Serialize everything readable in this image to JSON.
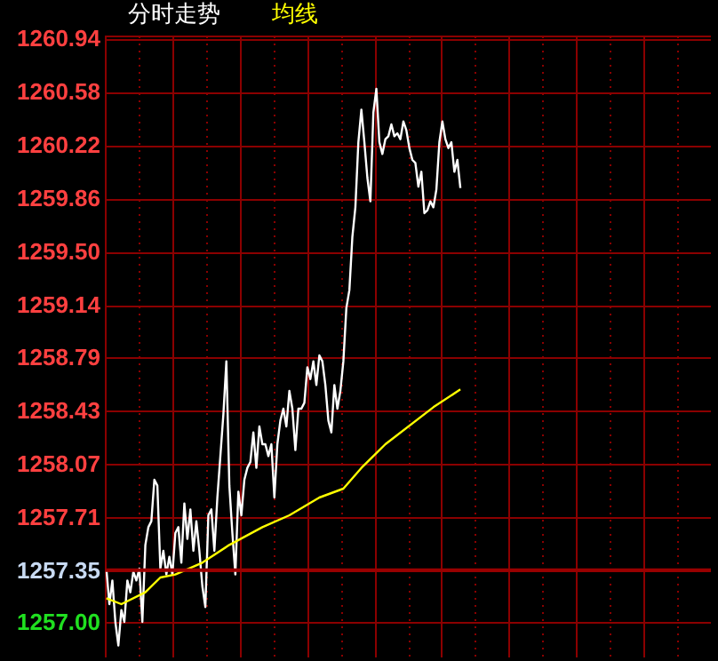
{
  "chart_data": {
    "type": "line",
    "grid": true,
    "tick_labels": "y",
    "categories": [
      null,
      null,
      null,
      null,
      null,
      null,
      null,
      null,
      null,
      null,
      null,
      null,
      null,
      null,
      null,
      null,
      null,
      null,
      null,
      null,
      null,
      null,
      null,
      null,
      null,
      null,
      null,
      null,
      null,
      null,
      null,
      null,
      null,
      null,
      null,
      null,
      null,
      null,
      null,
      null,
      null,
      null,
      null,
      null,
      null,
      null,
      null,
      null,
      null,
      null,
      null,
      null,
      null,
      null,
      null,
      null,
      null,
      null,
      null,
      null,
      null,
      null,
      null,
      null,
      null,
      null,
      null,
      null,
      null,
      null,
      null,
      null,
      null,
      null,
      null,
      null,
      null,
      null,
      null,
      null,
      null,
      null,
      null,
      null,
      null,
      null,
      null,
      null,
      null,
      null,
      null,
      null,
      null,
      null,
      null,
      null,
      null,
      null,
      null,
      null,
      null,
      null,
      null,
      null,
      null,
      null,
      null,
      null,
      null,
      null,
      null,
      null,
      null,
      null,
      null,
      null,
      null,
      null,
      null,
      null,
      null,
      null,
      null,
      null,
      null,
      null,
      null,
      null,
      null,
      null,
      null,
      null,
      null,
      null,
      null,
      null,
      null,
      null,
      null,
      null,
      null,
      null,
      null,
      null,
      null,
      null,
      null,
      null,
      null,
      null,
      null,
      null,
      null,
      null,
      null,
      null,
      null,
      null,
      null,
      null,
      null,
      null,
      null,
      null,
      null,
      null,
      null,
      null,
      null,
      null,
      null,
      null,
      null,
      null,
      null,
      null,
      null,
      null,
      null,
      null,
      null,
      null,
      null,
      null,
      null,
      null,
      null,
      null,
      null,
      null,
      null,
      null,
      null,
      null,
      null,
      null,
      null,
      null,
      null,
      null,
      null,
      null
    ],
    "ylim": [
      1256.76,
      1260.96
    ],
    "yticks": [
      {
        "value": 1257,
        "label": "1257.00"
      },
      1257.35,
      1257.71,
      1258.07,
      1258.43,
      1258.79,
      1259.14,
      {
        "value": 1259.5,
        "label": "1259.50"
      },
      1259.86,
      1260.22,
      1260.58,
      1260.94
    ],
    "ref_lines": [
      {
        "axis": "y",
        "value": 1257.35,
        "color": "#990000"
      }
    ],
    "series": [
      {
        "name": "分时走势",
        "color": "#ffffff",
        "values": [
          1257.36,
          1257.12,
          1257.28,
          1257.0,
          1256.84,
          1257.08,
          1257.0,
          1257.28,
          1257.2,
          1257.34,
          1257.28,
          1257.36,
          1257.0,
          1257.52,
          1257.64,
          1257.68,
          1257.96,
          1257.92,
          1257.36,
          1257.48,
          1257.32,
          1257.44,
          1257.32,
          1257.6,
          1257.64,
          1257.4,
          1257.8,
          1257.56,
          1257.76,
          1257.48,
          1257.68,
          1257.48,
          1257.24,
          1257.1,
          1257.72,
          1257.76,
          1257.48,
          1257.84,
          1258.12,
          1258.4,
          1258.76,
          1257.92,
          1257.6,
          1257.32,
          1257.88,
          1257.72,
          1257.96,
          1258.04,
          1258.08,
          1258.28,
          1258.04,
          1258.32,
          1258.2,
          1258.2,
          1258.12,
          1258.2,
          1257.84,
          1258.2,
          1258.36,
          1258.44,
          1258.32,
          1258.56,
          1258.44,
          1258.16,
          1258.44,
          1258.44,
          1258.48,
          1258.72,
          1258.64,
          1258.76,
          1258.6,
          1258.8,
          1258.76,
          1258.6,
          1258.36,
          1258.28,
          1258.6,
          1258.44,
          1258.56,
          1258.76,
          1259.12,
          1259.24,
          1259.6,
          1259.8,
          1260.24,
          1260.46,
          1260.24,
          1260.0,
          1259.84,
          1260.44,
          1260.6,
          1260.24,
          1260.16,
          1260.26,
          1260.28,
          1260.36,
          1260.28,
          1260.3,
          1260.26,
          1260.38,
          1260.32,
          1260.2,
          1260.12,
          1260.1,
          1259.94,
          1260.04,
          1259.76,
          1259.78,
          1259.84,
          1259.8,
          1259.92,
          1260.24,
          1260.38,
          1260.26,
          1260.2,
          1260.24,
          1260.04,
          1260.12,
          1259.93,
          null,
          null,
          null,
          null,
          null,
          null,
          null,
          null,
          null,
          null,
          null,
          null,
          null,
          null,
          null,
          null,
          null,
          null,
          null,
          null,
          null,
          null,
          null,
          null,
          null,
          null,
          null,
          null,
          null,
          null,
          null,
          null,
          null,
          null,
          null,
          null,
          null,
          null,
          null,
          null,
          null,
          null,
          null,
          null,
          null,
          null,
          null,
          null,
          null,
          null,
          null,
          null,
          null,
          null,
          null,
          null,
          null,
          null,
          null,
          null,
          null,
          null,
          null,
          null,
          null,
          null,
          null,
          null,
          null,
          null,
          null,
          null,
          null,
          null,
          null,
          null,
          null,
          null,
          null,
          null,
          null,
          null,
          null
        ]
      },
      {
        "name": "均线",
        "color": "#ffff00",
        "values": [
          1257.16,
          null,
          null,
          null,
          null,
          1257.12,
          null,
          null,
          null,
          null,
          null,
          null,
          null,
          1257.2,
          null,
          null,
          null,
          null,
          1257.3,
          null,
          null,
          null,
          null,
          1257.32,
          null,
          null,
          null,
          null,
          null,
          null,
          null,
          null,
          1257.4,
          null,
          null,
          null,
          null,
          null,
          null,
          null,
          null,
          1257.52,
          null,
          null,
          null,
          null,
          null,
          null,
          null,
          null,
          null,
          null,
          1257.64,
          null,
          null,
          null,
          null,
          null,
          null,
          null,
          null,
          1257.72,
          null,
          null,
          null,
          null,
          null,
          null,
          null,
          null,
          null,
          1257.84,
          null,
          null,
          null,
          null,
          null,
          null,
          null,
          1257.9,
          null,
          null,
          null,
          null,
          null,
          1258.04,
          null,
          null,
          null,
          null,
          null,
          null,
          null,
          1258.2,
          null,
          null,
          null,
          null,
          null,
          null,
          null,
          null,
          null,
          null,
          null,
          null,
          null,
          null,
          null,
          1258.45,
          null,
          null,
          null,
          null,
          null,
          null,
          null,
          null,
          1258.57,
          null,
          null,
          null,
          null,
          null,
          null,
          null,
          null,
          null,
          null,
          null,
          null,
          null,
          null,
          null,
          null,
          null,
          null,
          null,
          null,
          null,
          null,
          null,
          null,
          null,
          null,
          null,
          null,
          null,
          null,
          null,
          null,
          null,
          null,
          null,
          null,
          null,
          null,
          null,
          null,
          null,
          null,
          null,
          null,
          null,
          null,
          null,
          null,
          null,
          null,
          null,
          null,
          null,
          null,
          null,
          null,
          null,
          null,
          null,
          null,
          null,
          null,
          null,
          null,
          null,
          null,
          null,
          null,
          null,
          null,
          null,
          null,
          null,
          null,
          null,
          null,
          null,
          null,
          null,
          null,
          null,
          null,
          null
        ]
      }
    ]
  }
}
